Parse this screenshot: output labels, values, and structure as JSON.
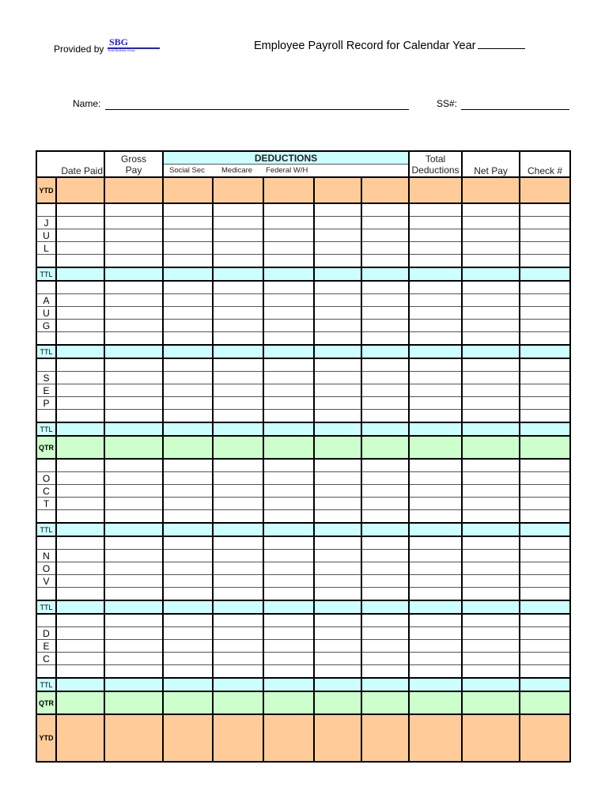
{
  "header": {
    "provided_by": "Provided by",
    "logo_text": "SBG",
    "logo_subtext": "Small Business Group",
    "title": "Employee Payroll Record  for Calendar Year",
    "name_label": "Name:",
    "ss_label": "SS#:"
  },
  "table": {
    "columns": {
      "date_paid": "Date Paid",
      "gross_pay": [
        "Gross",
        "Pay"
      ],
      "deductions": "DEDUCTIONS",
      "social_sec": "Social Sec",
      "medicare": "Medicare",
      "federal_wh": "Federal W/H",
      "total_deductions": [
        "Total",
        "Deductions"
      ],
      "net_pay": "Net Pay",
      "check_no": "Check #"
    },
    "ytd_label": "YTD",
    "ttl_label": "TTL",
    "qtr_label": "QTR",
    "months": [
      [
        "J",
        "U",
        "L"
      ],
      [
        "A",
        "U",
        "G"
      ],
      [
        "S",
        "E",
        "P"
      ],
      [
        "O",
        "C",
        "T"
      ],
      [
        "N",
        "O",
        "V"
      ],
      [
        "D",
        "E",
        "C"
      ]
    ],
    "colors": {
      "ytd": "#ffcc99",
      "ttl": "#ccffff",
      "qtr": "#ccffcc"
    }
  }
}
